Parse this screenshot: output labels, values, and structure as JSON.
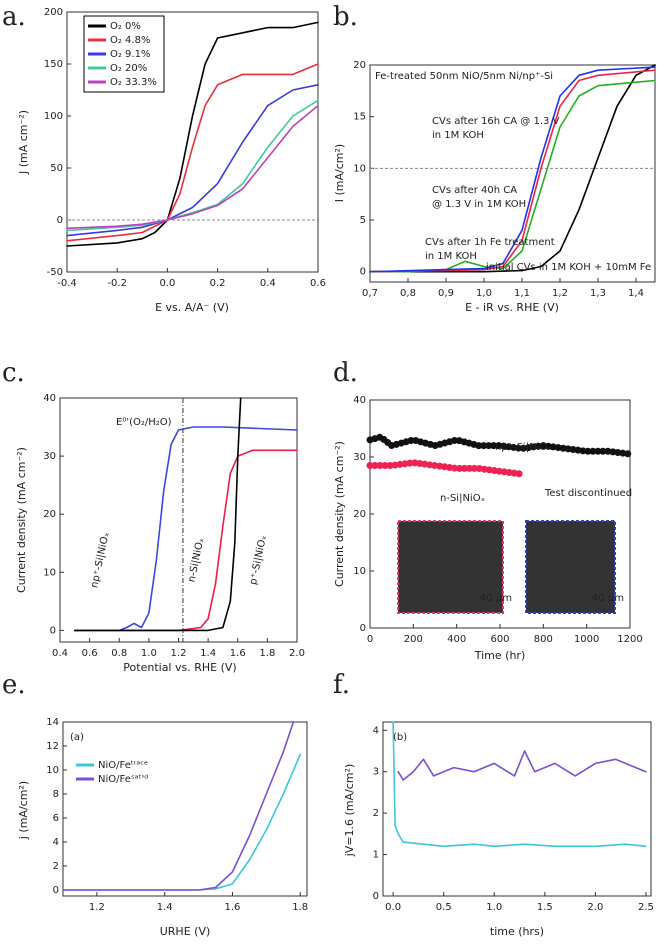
{
  "chart_data": [
    {
      "type": "line",
      "panel_label": "a.",
      "xlabel": "E vs. A/A⁻ (V)",
      "ylabel": "J (mA cm⁻²)",
      "xlim": [
        -0.4,
        0.6
      ],
      "xticks": [
        -0.4,
        -0.2,
        {
          "value": 0,
          "label": "0.0"
        },
        0.2,
        0.4,
        0.6
      ],
      "ylim": [
        -50,
        200
      ],
      "yticks": [
        -50,
        0,
        50,
        100,
        150,
        200
      ],
      "hline": 0,
      "legend": "upper left",
      "series": [
        {
          "name": "O₂ 0%",
          "color": "#000000",
          "x": [
            -0.4,
            -0.2,
            -0.1,
            -0.05,
            0,
            0.05,
            0.1,
            0.15,
            0.2,
            0.3,
            0.4,
            0.5,
            0.6
          ],
          "values": [
            -25,
            -22,
            -18,
            -12,
            0,
            40,
            100,
            150,
            175,
            180,
            185,
            185,
            190
          ]
        },
        {
          "name": "O₂ 4.8%",
          "color": "#e8303c",
          "x": [
            -0.4,
            -0.2,
            -0.1,
            0,
            0.05,
            0.1,
            0.15,
            0.2,
            0.3,
            0.4,
            0.5,
            0.6
          ],
          "values": [
            -20,
            -15,
            -12,
            0,
            25,
            70,
            110,
            130,
            140,
            140,
            140,
            150
          ]
        },
        {
          "name": "O₂ 9.1%",
          "color": "#3a3adf",
          "x": [
            -0.4,
            -0.2,
            -0.1,
            0,
            0.1,
            0.2,
            0.3,
            0.4,
            0.5,
            0.6
          ],
          "values": [
            -15,
            -10,
            -7,
            0,
            12,
            35,
            75,
            110,
            125,
            130
          ]
        },
        {
          "name": "O₂ 20%",
          "color": "#3fc8a0",
          "x": [
            -0.4,
            -0.2,
            -0.1,
            0,
            0.1,
            0.2,
            0.3,
            0.4,
            0.5,
            0.6
          ],
          "values": [
            -10,
            -7,
            -5,
            0,
            7,
            15,
            35,
            70,
            100,
            115
          ]
        },
        {
          "name": "O₂ 33.3%",
          "color": "#c040c0",
          "x": [
            -0.4,
            -0.2,
            -0.1,
            0,
            0.1,
            0.2,
            0.3,
            0.4,
            0.5,
            0.6
          ],
          "values": [
            -8,
            -6,
            -4,
            0,
            6,
            14,
            30,
            60,
            90,
            110
          ]
        }
      ]
    },
    {
      "type": "line",
      "panel_label": "b.",
      "xlabel": "E - iR vs. RHE (V)",
      "ylabel": "I (mA/cm²)",
      "xlim": [
        0.7,
        1.45
      ],
      "xticks": [
        {
          "value": 0.7,
          "label": "0,7"
        },
        {
          "value": 0.8,
          "label": "0,8"
        },
        {
          "value": 0.9,
          "label": "0,9"
        },
        {
          "value": 1.0,
          "label": "1,0"
        },
        {
          "value": 1.1,
          "label": "1,1"
        },
        {
          "value": 1.2,
          "label": "1,2"
        },
        {
          "value": 1.3,
          "label": "1,3"
        },
        {
          "value": 1.4,
          "label": "1,4"
        }
      ],
      "ylim": [
        -1,
        20
      ],
      "yticks": [
        0,
        5,
        10,
        15,
        20
      ],
      "hline": 10,
      "annotations": [
        "Fe-treated 50nm NiO/5nm Ni/np⁺-Si",
        "CVs after 16h CA @ 1.3 V",
        "in 1M KOH",
        "CVs after 40h CA",
        "@ 1.3 V in 1M KOH",
        "CVs after 1h Fe treatment",
        "in 1M KOH",
        "initial CVs in 1M KOH + 10mM Fe"
      ],
      "series": [
        {
          "color": "#000000",
          "x": [
            0.7,
            1.0,
            1.1,
            1.15,
            1.2,
            1.25,
            1.3,
            1.35,
            1.4,
            1.45
          ],
          "values": [
            0,
            0,
            0.1,
            0.5,
            2,
            6,
            11,
            16,
            19,
            20
          ]
        },
        {
          "color": "#22b022",
          "x": [
            0.7,
            0.8,
            0.9,
            0.95,
            1.0,
            1.05,
            1.1,
            1.15,
            1.2,
            1.25,
            1.3,
            1.45
          ],
          "values": [
            0,
            0,
            0.2,
            1,
            0.5,
            0.3,
            2,
            8,
            14,
            17,
            18,
            18.5
          ]
        },
        {
          "color": "#ee2244",
          "x": [
            0.7,
            0.9,
            1.0,
            1.05,
            1.1,
            1.15,
            1.2,
            1.25,
            1.3,
            1.45
          ],
          "values": [
            0,
            0.1,
            0.2,
            0.5,
            3,
            10,
            16,
            18.5,
            19,
            19.5
          ]
        },
        {
          "color": "#2233ee",
          "x": [
            0.7,
            0.9,
            1.0,
            1.05,
            1.1,
            1.15,
            1.2,
            1.25,
            1.3,
            1.45
          ],
          "values": [
            0,
            0.2,
            0.3,
            0.8,
            4,
            11,
            17,
            19,
            19.5,
            19.8
          ]
        }
      ]
    },
    {
      "type": "line",
      "panel_label": "c.",
      "xlabel": "Potential vs. RHE (V)",
      "ylabel": "Current density (mA cm⁻²)",
      "xlim": [
        0.4,
        2.0
      ],
      "xticks": [
        0.4,
        0.6,
        0.8,
        {
          "value": 1.0,
          "label": "1.0"
        },
        1.2,
        1.4,
        1.6,
        1.8,
        {
          "value": 2.0,
          "label": "2.0"
        }
      ],
      "ylim": [
        -2,
        40
      ],
      "yticks": [
        0,
        10,
        20,
        30,
        40
      ],
      "vline": 1.23,
      "annotations": [
        "E⁰'(O₂/H₂O)",
        "np⁺-Si|NiOₓ",
        "n-Si|NiOₓ",
        "p⁺-Si|NiOₓ"
      ],
      "series": [
        {
          "color": "#3a48e0",
          "x": [
            0.5,
            0.8,
            0.85,
            0.9,
            0.95,
            1.0,
            1.05,
            1.1,
            1.15,
            1.2,
            1.3,
            1.5,
            2.0
          ],
          "values": [
            0,
            0,
            0.5,
            1.2,
            0.5,
            3,
            12,
            24,
            32,
            34.5,
            35,
            35,
            34.5
          ]
        },
        {
          "color": "#ee1c4c",
          "x": [
            0.5,
            1.2,
            1.3,
            1.35,
            1.4,
            1.45,
            1.5,
            1.55,
            1.6,
            1.7,
            2.0
          ],
          "values": [
            0,
            0,
            0.3,
            0.5,
            2,
            8,
            18,
            27,
            30,
            31,
            31
          ]
        },
        {
          "color": "#000000",
          "x": [
            0.5,
            1.4,
            1.5,
            1.55,
            1.58,
            1.6,
            1.62
          ],
          "values": [
            0,
            0,
            0.5,
            5,
            15,
            30,
            40
          ]
        }
      ]
    },
    {
      "type": "line",
      "panel_label": "d.",
      "xlabel": "Time (hr)",
      "ylabel": "Current density (mA cm⁻²)",
      "xlim": [
        0,
        1200
      ],
      "xticks": [
        0,
        200,
        400,
        600,
        800,
        1000,
        1200
      ],
      "ylim": [
        0,
        40
      ],
      "yticks": [
        0,
        10,
        20,
        30,
        40
      ],
      "annotations": [
        "np⁺-Si|NiOₓ",
        "n-Si|NiOₓ",
        "Test discontinued",
        "40 µm",
        "40 µm"
      ],
      "series": [
        {
          "color": "#111111",
          "x": [
            0,
            50,
            100,
            200,
            300,
            400,
            500,
            600,
            700,
            800,
            900,
            1000,
            1100,
            1200
          ],
          "values": [
            33,
            33.5,
            32,
            33,
            32,
            33,
            32,
            32,
            31.5,
            32,
            31.5,
            31,
            31,
            30.5
          ]
        },
        {
          "color": "#ee2255",
          "x": [
            0,
            100,
            200,
            300,
            400,
            500,
            600,
            700
          ],
          "values": [
            28.5,
            28.5,
            29,
            28.5,
            28,
            28,
            27.5,
            27
          ]
        }
      ]
    },
    {
      "type": "line",
      "panel_label": "e.",
      "xlabel": "URHE (V)",
      "ylabel": "j (mA/cm²)",
      "xlim": [
        1.1,
        1.82
      ],
      "xticks": [
        1.2,
        1.4,
        1.6,
        1.8
      ],
      "ylim": [
        -0.5,
        14
      ],
      "yticks": [
        0,
        2,
        4,
        6,
        8,
        10,
        12,
        14
      ],
      "legend": "upper left",
      "annotations": [
        "(a)"
      ],
      "series": [
        {
          "name": "NiO/Feᵗʳᵃᶜᵉ",
          "color": "#3ec6e0",
          "x": [
            1.1,
            1.5,
            1.55,
            1.6,
            1.65,
            1.7,
            1.75,
            1.8
          ],
          "values": [
            0,
            0,
            0.1,
            0.5,
            2.5,
            5,
            8,
            11.3
          ]
        },
        {
          "name": "NiO/Feˢᵃᵗ'ᵈ",
          "color": "#7b4fd6",
          "x": [
            1.1,
            1.5,
            1.55,
            1.6,
            1.65,
            1.7,
            1.75,
            1.78
          ],
          "values": [
            0,
            0,
            0.2,
            1.5,
            4.5,
            8,
            11.5,
            14
          ]
        }
      ]
    },
    {
      "type": "line",
      "panel_label": "f.",
      "xlabel": "time (hrs)",
      "ylabel": "jV=1.6 (mA/cm²)",
      "xlim": [
        -0.1,
        2.55
      ],
      "xticks": [
        {
          "value": 0,
          "label": "0.0"
        },
        0.5,
        {
          "value": 1.0,
          "label": "1.0"
        },
        1.5,
        {
          "value": 2.0,
          "label": "2.0"
        },
        2.5
      ],
      "ylim": [
        0,
        4.2
      ],
      "yticks": [
        0,
        1,
        2,
        3,
        4
      ],
      "annotations": [
        "(b)"
      ],
      "series": [
        {
          "color": "#3ec6e0",
          "x": [
            0,
            0.02,
            0.05,
            0.1,
            0.3,
            0.5,
            0.8,
            1.0,
            1.3,
            1.6,
            2.0,
            2.3,
            2.5
          ],
          "values": [
            4.2,
            1.7,
            1.5,
            1.3,
            1.25,
            1.2,
            1.25,
            1.2,
            1.25,
            1.2,
            1.2,
            1.25,
            1.2
          ]
        },
        {
          "color": "#7b4fd6",
          "x": [
            0.05,
            0.1,
            0.2,
            0.3,
            0.4,
            0.6,
            0.8,
            1.0,
            1.2,
            1.3,
            1.4,
            1.6,
            1.8,
            2.0,
            2.2,
            2.4,
            2.5
          ],
          "values": [
            3.0,
            2.8,
            3.0,
            3.3,
            2.9,
            3.1,
            3.0,
            3.2,
            2.9,
            3.5,
            3.0,
            3.2,
            2.9,
            3.2,
            3.3,
            3.1,
            3.0
          ]
        }
      ]
    }
  ]
}
